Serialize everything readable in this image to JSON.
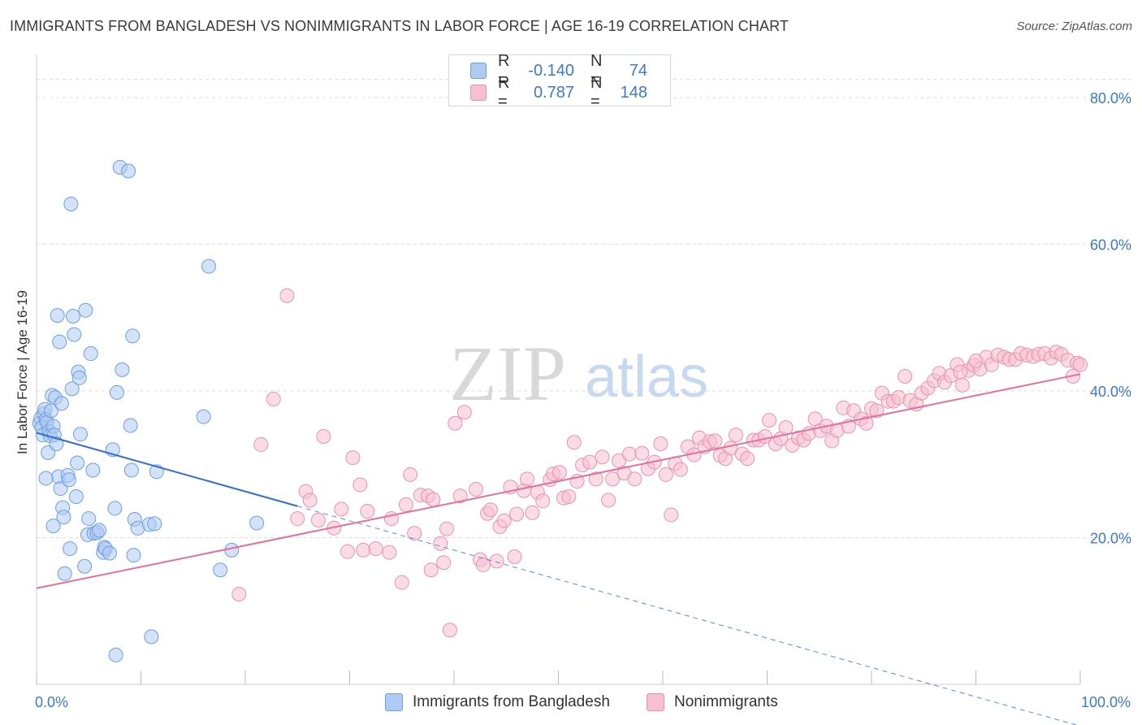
{
  "title": "IMMIGRANTS FROM BANGLADESH VS NONIMMIGRANTS IN LABOR FORCE | AGE 16-19 CORRELATION CHART",
  "source": "Source: ZipAtlas.com",
  "watermark": {
    "zip": "ZIP",
    "atlas": "atlas"
  },
  "colors": {
    "blue_fill": "#aecbf3",
    "blue_stroke": "#6d9fe0",
    "blue_line": "#2f6fd0",
    "pink_fill": "#f7bfd0",
    "pink_stroke": "#e893ae",
    "pink_line": "#e56f99",
    "tick_label": "#3b78d0",
    "grid": "#dddddd"
  },
  "legend": {
    "rows": [
      {
        "r_label": "R =",
        "r_value": "-0.140",
        "n_label": "N =",
        "n_value": "74"
      },
      {
        "r_label": "R =",
        "r_value": "0.787",
        "n_label": "N =",
        "n_value": "148"
      }
    ]
  },
  "bottom_legend": {
    "series1": "Immigrants from Bangladesh",
    "series2": "Nonimmigrants"
  },
  "chart_data": {
    "type": "scatter",
    "ylabel": "In Labor Force | Age 16-19",
    "xlim": [
      0,
      100
    ],
    "ylim": [
      0,
      85
    ],
    "x_tick_labels": [
      {
        "value": 0,
        "label": "0.0%"
      },
      {
        "value": 100,
        "label": "100.0%"
      }
    ],
    "y_tick_labels": [
      {
        "value": 20,
        "label": "20.0%"
      },
      {
        "value": 40,
        "label": "40.0%"
      },
      {
        "value": 60,
        "label": "60.0%"
      },
      {
        "value": 80,
        "label": "80.0%"
      }
    ],
    "grid": true,
    "series": [
      {
        "name": "Immigrants from Bangladesh",
        "color": "#aecbf3",
        "trend": {
          "x0": 0,
          "y0": 34.3,
          "x1": 25,
          "y1": 24.3,
          "dashed_to_x": 100,
          "dashed_to_y": -5.7
        },
        "points": [
          [
            0.3,
            35.6
          ],
          [
            0.4,
            36.3
          ],
          [
            0.5,
            35.0
          ],
          [
            0.6,
            34.0
          ],
          [
            0.7,
            36.9
          ],
          [
            0.8,
            37.5
          ],
          [
            0.9,
            36.1
          ],
          [
            1.0,
            35.7
          ],
          [
            1.1,
            31.6
          ],
          [
            1.2,
            34.5
          ],
          [
            1.3,
            33.9
          ],
          [
            1.4,
            37.3
          ],
          [
            1.5,
            39.4
          ],
          [
            1.6,
            35.2
          ],
          [
            1.7,
            34.0
          ],
          [
            1.8,
            39.1
          ],
          [
            1.9,
            32.8
          ],
          [
            2.0,
            50.3
          ],
          [
            2.1,
            28.3
          ],
          [
            2.2,
            46.7
          ],
          [
            2.3,
            26.7
          ],
          [
            2.4,
            38.3
          ],
          [
            2.5,
            24.1
          ],
          [
            2.6,
            22.8
          ],
          [
            2.7,
            15.1
          ],
          [
            3.0,
            28.5
          ],
          [
            3.1,
            27.9
          ],
          [
            3.2,
            18.5
          ],
          [
            3.3,
            65.5
          ],
          [
            3.4,
            40.3
          ],
          [
            3.5,
            50.2
          ],
          [
            3.6,
            47.7
          ],
          [
            3.8,
            25.6
          ],
          [
            3.9,
            30.2
          ],
          [
            4.0,
            42.6
          ],
          [
            4.1,
            41.8
          ],
          [
            4.2,
            34.1
          ],
          [
            4.6,
            16.1
          ],
          [
            4.7,
            51.0
          ],
          [
            4.9,
            20.4
          ],
          [
            5.0,
            22.6
          ],
          [
            5.2,
            45.1
          ],
          [
            5.4,
            29.2
          ],
          [
            5.5,
            20.6
          ],
          [
            5.8,
            20.7
          ],
          [
            6.0,
            21.0
          ],
          [
            6.4,
            18.0
          ],
          [
            6.5,
            18.7
          ],
          [
            6.6,
            18.5
          ],
          [
            7.0,
            17.9
          ],
          [
            7.3,
            32.0
          ],
          [
            7.5,
            24.0
          ],
          [
            7.6,
            4.0
          ],
          [
            7.7,
            39.8
          ],
          [
            8.0,
            70.5
          ],
          [
            8.2,
            42.9
          ],
          [
            8.8,
            70.0
          ],
          [
            9.0,
            35.3
          ],
          [
            9.1,
            29.2
          ],
          [
            9.2,
            47.5
          ],
          [
            9.3,
            17.6
          ],
          [
            9.4,
            22.5
          ],
          [
            9.7,
            21.3
          ],
          [
            10.8,
            21.8
          ],
          [
            11.0,
            6.5
          ],
          [
            11.3,
            21.9
          ],
          [
            11.5,
            29.0
          ],
          [
            16.0,
            36.5
          ],
          [
            16.5,
            57.0
          ],
          [
            17.6,
            15.6
          ],
          [
            18.7,
            18.3
          ],
          [
            21.1,
            22.0
          ],
          [
            0.9,
            28.1
          ],
          [
            1.6,
            21.6
          ]
        ]
      },
      {
        "name": "Nonimmigrants",
        "color": "#f7bfd0",
        "trend": {
          "x0": 0,
          "y0": 13.1,
          "x1": 100,
          "y1": 42.3
        },
        "points": [
          [
            19.4,
            12.3
          ],
          [
            21.5,
            32.7
          ],
          [
            22.7,
            38.9
          ],
          [
            24.0,
            53.0
          ],
          [
            25.0,
            22.6
          ],
          [
            25.8,
            26.3
          ],
          [
            26.2,
            25.1
          ],
          [
            27.0,
            22.4
          ],
          [
            27.5,
            33.8
          ],
          [
            28.5,
            21.3
          ],
          [
            29.2,
            23.9
          ],
          [
            29.8,
            18.1
          ],
          [
            30.3,
            30.9
          ],
          [
            31.0,
            27.2
          ],
          [
            31.3,
            18.3
          ],
          [
            31.7,
            23.6
          ],
          [
            32.5,
            18.5
          ],
          [
            33.8,
            18.0
          ],
          [
            34.0,
            22.6
          ],
          [
            35.0,
            13.9
          ],
          [
            35.4,
            24.5
          ],
          [
            35.8,
            28.6
          ],
          [
            36.2,
            20.6
          ],
          [
            36.8,
            25.8
          ],
          [
            37.5,
            25.7
          ],
          [
            37.8,
            15.6
          ],
          [
            38.0,
            25.2
          ],
          [
            38.7,
            19.2
          ],
          [
            39.0,
            16.6
          ],
          [
            39.3,
            21.2
          ],
          [
            39.6,
            7.4
          ],
          [
            40.1,
            35.6
          ],
          [
            40.6,
            25.7
          ],
          [
            41.0,
            37.1
          ],
          [
            42.1,
            26.6
          ],
          [
            42.5,
            17.0
          ],
          [
            42.8,
            16.3
          ],
          [
            43.2,
            23.3
          ],
          [
            43.5,
            23.8
          ],
          [
            44.1,
            16.8
          ],
          [
            44.4,
            21.5
          ],
          [
            44.8,
            22.3
          ],
          [
            45.4,
            26.9
          ],
          [
            45.8,
            17.4
          ],
          [
            46.0,
            23.2
          ],
          [
            46.7,
            26.4
          ],
          [
            47.0,
            28.0
          ],
          [
            47.5,
            23.4
          ],
          [
            48.0,
            26.2
          ],
          [
            48.5,
            25.0
          ],
          [
            49.2,
            27.9
          ],
          [
            49.5,
            28.7
          ],
          [
            50.1,
            28.9
          ],
          [
            50.5,
            25.4
          ],
          [
            51.0,
            25.6
          ],
          [
            51.5,
            33.0
          ],
          [
            51.8,
            27.7
          ],
          [
            52.3,
            29.9
          ],
          [
            53.0,
            30.3
          ],
          [
            53.6,
            28.0
          ],
          [
            54.2,
            31.0
          ],
          [
            54.8,
            25.1
          ],
          [
            55.2,
            28.0
          ],
          [
            55.8,
            30.5
          ],
          [
            56.3,
            28.8
          ],
          [
            56.8,
            31.4
          ],
          [
            57.3,
            28.0
          ],
          [
            58.0,
            31.5
          ],
          [
            58.6,
            29.4
          ],
          [
            59.2,
            30.3
          ],
          [
            59.8,
            32.8
          ],
          [
            60.3,
            28.6
          ],
          [
            60.8,
            23.1
          ],
          [
            61.2,
            30.1
          ],
          [
            61.7,
            29.3
          ],
          [
            62.4,
            32.4
          ],
          [
            63.0,
            31.3
          ],
          [
            63.5,
            33.6
          ],
          [
            64.0,
            32.4
          ],
          [
            64.5,
            33.1
          ],
          [
            65.0,
            33.2
          ],
          [
            65.5,
            31.2
          ],
          [
            66.0,
            30.8
          ],
          [
            66.5,
            32.2
          ],
          [
            67.0,
            34.0
          ],
          [
            67.6,
            31.4
          ],
          [
            68.1,
            30.8
          ],
          [
            68.7,
            33.3
          ],
          [
            69.2,
            33.3
          ],
          [
            69.8,
            33.8
          ],
          [
            70.2,
            36.0
          ],
          [
            70.8,
            32.8
          ],
          [
            71.3,
            33.5
          ],
          [
            71.8,
            35.0
          ],
          [
            72.4,
            32.6
          ],
          [
            73.0,
            33.6
          ],
          [
            73.5,
            33.3
          ],
          [
            74.0,
            34.2
          ],
          [
            74.6,
            36.2
          ],
          [
            75.1,
            34.6
          ],
          [
            75.7,
            35.2
          ],
          [
            76.2,
            33.2
          ],
          [
            76.7,
            34.6
          ],
          [
            77.3,
            37.7
          ],
          [
            77.8,
            35.2
          ],
          [
            78.3,
            37.3
          ],
          [
            79.0,
            36.2
          ],
          [
            79.5,
            35.6
          ],
          [
            80.0,
            37.6
          ],
          [
            80.5,
            37.3
          ],
          [
            81.0,
            39.7
          ],
          [
            81.6,
            38.6
          ],
          [
            82.1,
            38.6
          ],
          [
            82.6,
            39.1
          ],
          [
            83.2,
            42.0
          ],
          [
            83.7,
            38.7
          ],
          [
            84.3,
            38.2
          ],
          [
            84.8,
            39.7
          ],
          [
            85.4,
            40.4
          ],
          [
            86.0,
            41.4
          ],
          [
            86.5,
            42.4
          ],
          [
            87.0,
            41.2
          ],
          [
            87.6,
            42.1
          ],
          [
            88.2,
            43.6
          ],
          [
            88.7,
            40.8
          ],
          [
            89.3,
            42.8
          ],
          [
            89.8,
            43.5
          ],
          [
            90.4,
            43.0
          ],
          [
            91.0,
            44.6
          ],
          [
            91.5,
            43.6
          ],
          [
            92.1,
            44.9
          ],
          [
            92.7,
            44.6
          ],
          [
            93.2,
            44.3
          ],
          [
            93.8,
            44.3
          ],
          [
            94.3,
            45.1
          ],
          [
            94.9,
            44.9
          ],
          [
            95.5,
            44.7
          ],
          [
            96.0,
            45.0
          ],
          [
            96.6,
            45.1
          ],
          [
            97.2,
            44.5
          ],
          [
            97.7,
            45.3
          ],
          [
            98.2,
            45.0
          ],
          [
            98.8,
            44.2
          ],
          [
            99.3,
            42.0
          ],
          [
            99.7,
            43.8
          ],
          [
            100.0,
            43.6
          ],
          [
            88.5,
            42.6
          ],
          [
            90.0,
            44.1
          ]
        ]
      }
    ]
  }
}
